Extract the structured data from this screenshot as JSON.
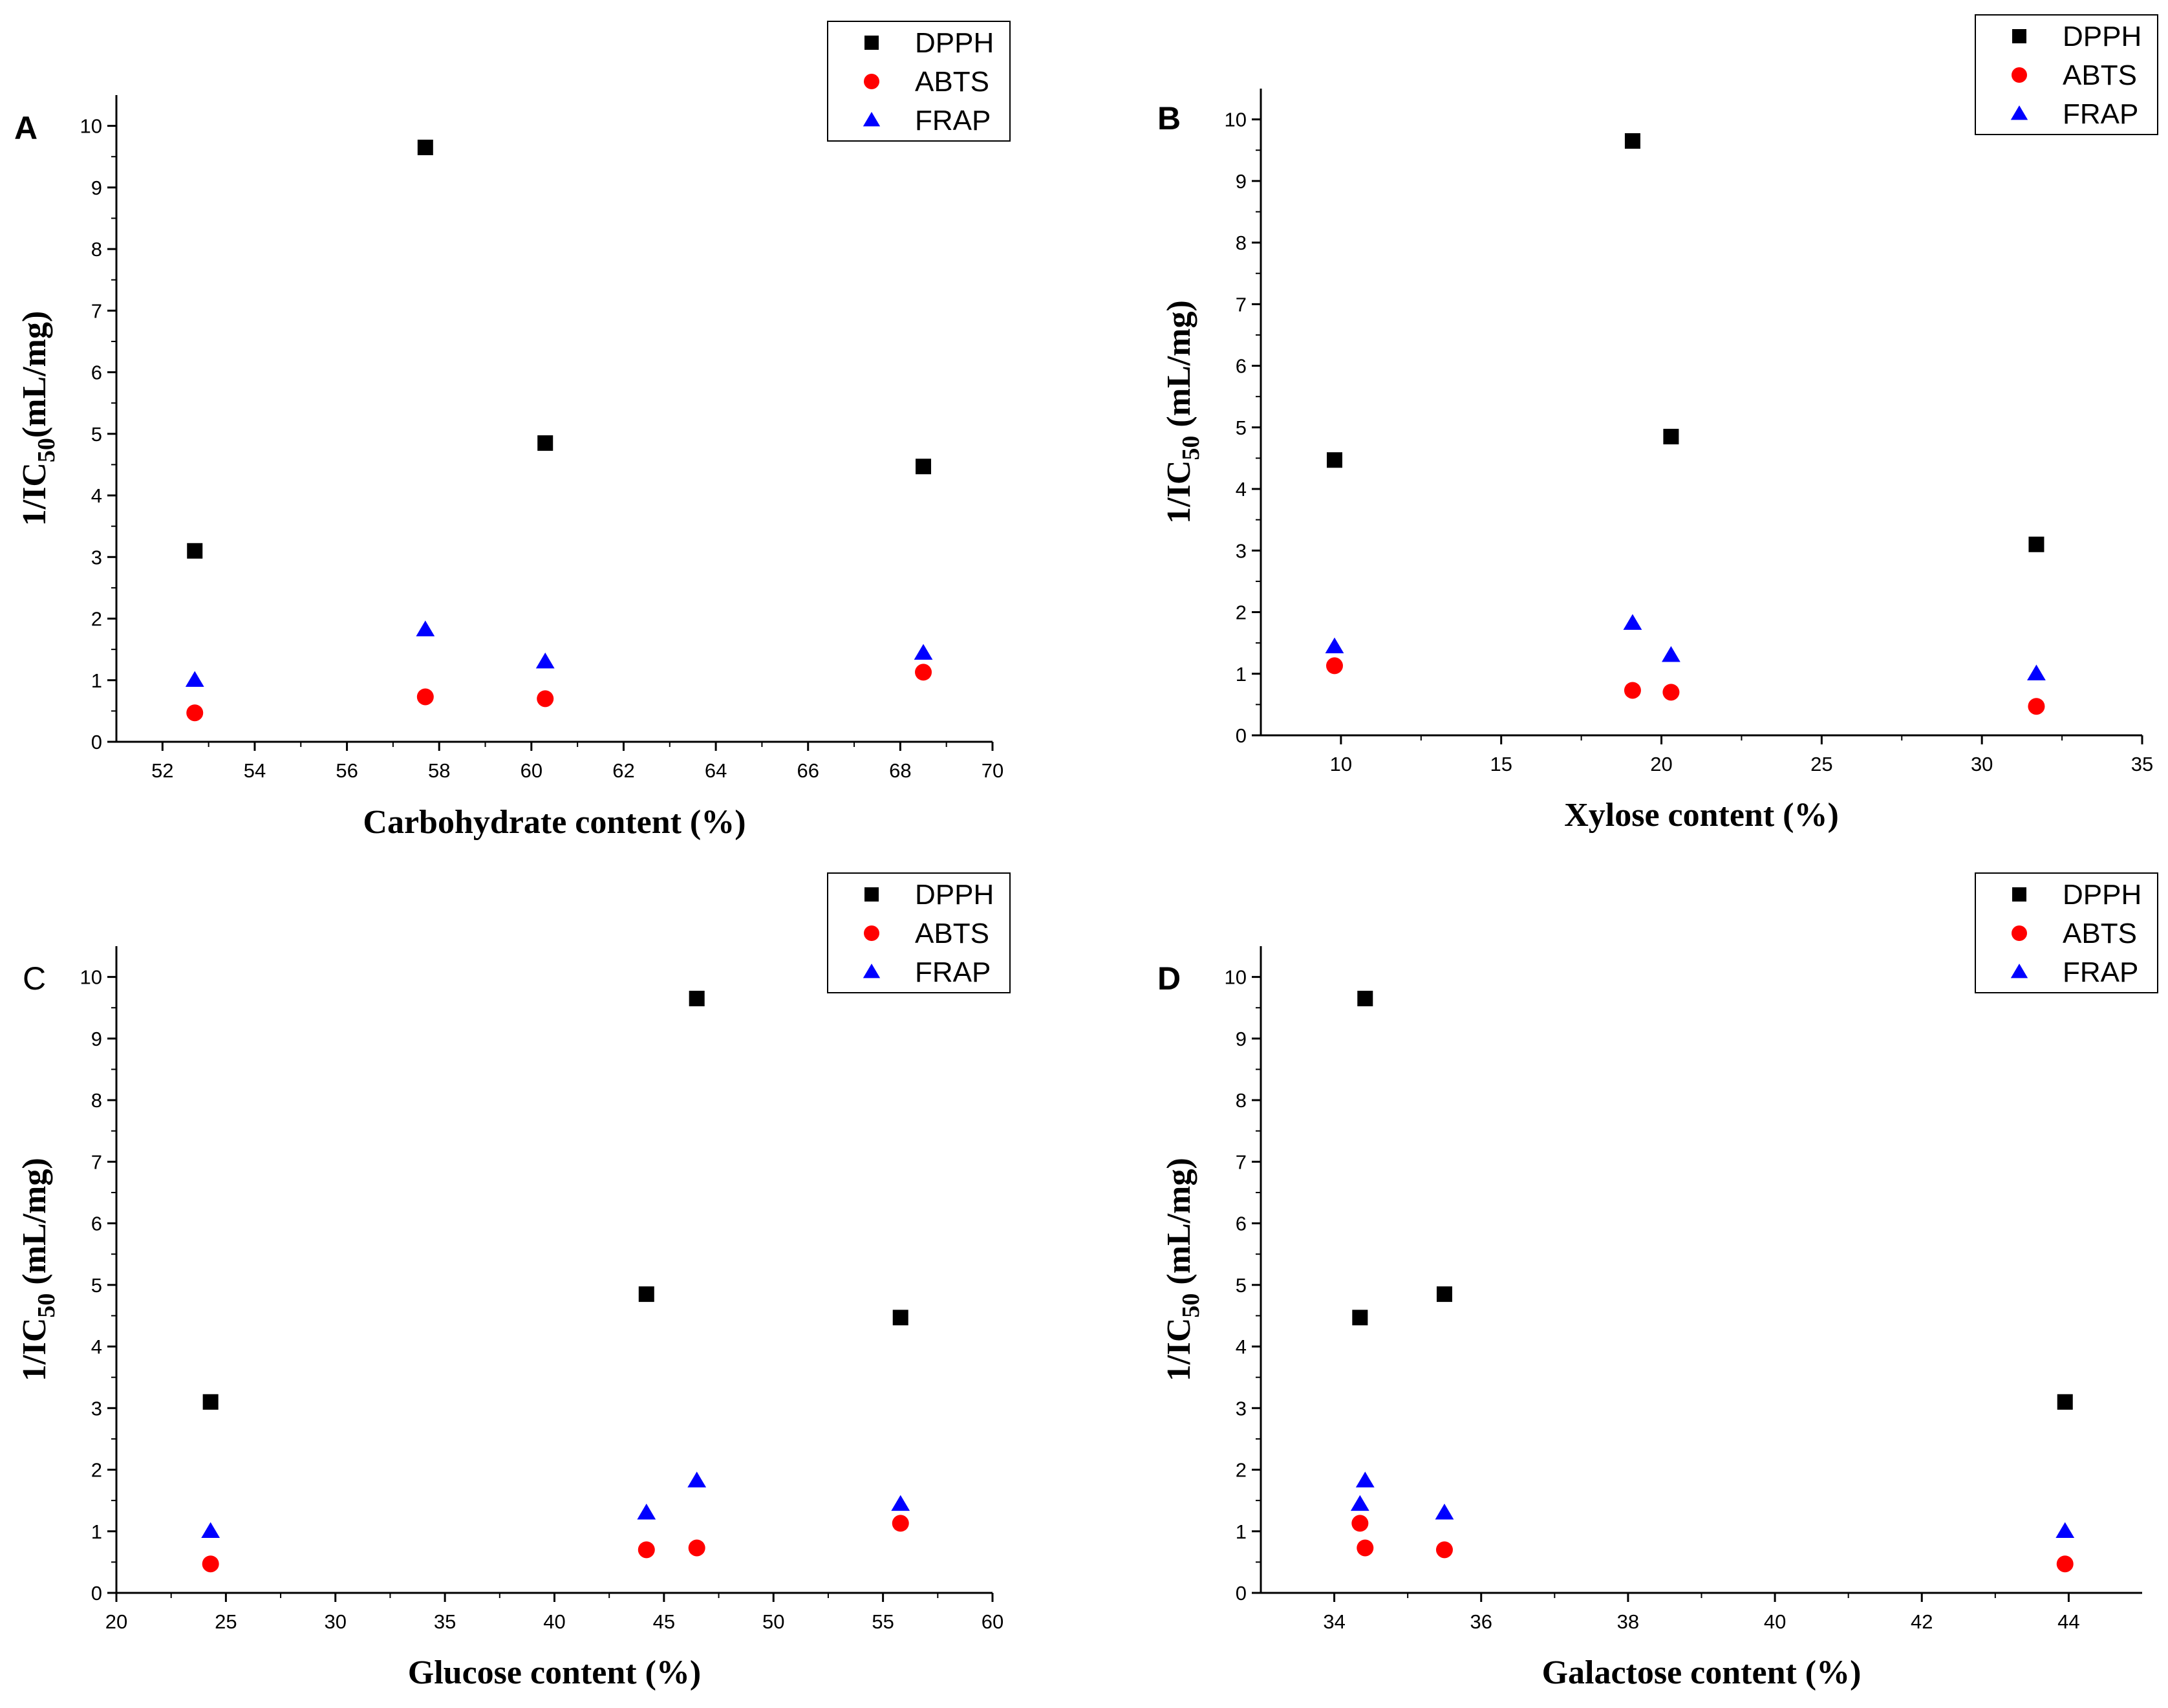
{
  "chart_data": [
    {
      "type": "scatter",
      "panel_label": "A",
      "panel_label_bold": true,
      "xlabel": "Carbohydrate content (%)",
      "ylabel_prefix": "1/IC",
      "ylabel_sub": "50",
      "ylabel_suffix": "(mL/mg)",
      "xlim": [
        51,
        70
      ],
      "xticks": [
        52,
        54,
        56,
        58,
        60,
        62,
        64,
        66,
        68,
        70
      ],
      "ylim": [
        0,
        10.5
      ],
      "yticks": [
        0,
        1,
        2,
        3,
        4,
        5,
        6,
        7,
        8,
        9,
        10
      ],
      "legend_position": "top-right",
      "series": [
        {
          "name": "DPPH",
          "marker": "square",
          "color": "#000000",
          "x": [
            52.7,
            57.7,
            60.3,
            68.5
          ],
          "y": [
            3.1,
            9.65,
            4.85,
            4.47
          ]
        },
        {
          "name": "ABTS",
          "marker": "circle",
          "color": "#ff0000",
          "x": [
            52.7,
            57.7,
            60.3,
            68.5
          ],
          "y": [
            0.47,
            0.73,
            0.7,
            1.13
          ]
        },
        {
          "name": "FRAP",
          "marker": "triangle",
          "color": "#0000ff",
          "x": [
            52.7,
            57.7,
            60.3,
            68.5
          ],
          "y": [
            1.0,
            1.82,
            1.3,
            1.44
          ]
        }
      ]
    },
    {
      "type": "scatter",
      "panel_label": "B",
      "panel_label_bold": true,
      "xlabel": "Xylose content (%)",
      "ylabel_prefix": "1/IC",
      "ylabel_sub": "50",
      "ylabel_suffix": " (mL/mg)",
      "xlim": [
        7.5,
        35
      ],
      "xticks": [
        10,
        15,
        20,
        25,
        30,
        35
      ],
      "ylim": [
        0,
        10.5
      ],
      "yticks": [
        0,
        1,
        2,
        3,
        4,
        5,
        6,
        7,
        8,
        9,
        10
      ],
      "legend_position": "top-right",
      "series": [
        {
          "name": "DPPH",
          "marker": "square",
          "color": "#000000",
          "x": [
            9.8,
            19.1,
            20.3,
            31.7
          ],
          "y": [
            4.47,
            9.65,
            4.85,
            3.1
          ]
        },
        {
          "name": "ABTS",
          "marker": "circle",
          "color": "#ff0000",
          "x": [
            9.8,
            19.1,
            20.3,
            31.7
          ],
          "y": [
            1.13,
            0.73,
            0.7,
            0.47
          ]
        },
        {
          "name": "FRAP",
          "marker": "triangle",
          "color": "#0000ff",
          "x": [
            9.8,
            19.1,
            20.3,
            31.7
          ],
          "y": [
            1.44,
            1.82,
            1.3,
            1.0
          ]
        }
      ]
    },
    {
      "type": "scatter",
      "panel_label": "C",
      "panel_label_bold": false,
      "xlabel": "Glucose content (%)",
      "ylabel_prefix": "1/IC",
      "ylabel_sub": "50",
      "ylabel_suffix": " (mL/mg)",
      "xlim": [
        20,
        60
      ],
      "xticks": [
        20,
        25,
        30,
        35,
        40,
        45,
        50,
        55,
        60
      ],
      "ylim": [
        0,
        10.5
      ],
      "yticks": [
        0,
        1,
        2,
        3,
        4,
        5,
        6,
        7,
        8,
        9,
        10
      ],
      "legend_position": "top-right",
      "series": [
        {
          "name": "DPPH",
          "marker": "square",
          "color": "#000000",
          "x": [
            24.3,
            44.2,
            46.5,
            55.8
          ],
          "y": [
            3.1,
            4.85,
            9.65,
            4.47
          ]
        },
        {
          "name": "ABTS",
          "marker": "circle",
          "color": "#ff0000",
          "x": [
            24.3,
            44.2,
            46.5,
            55.8
          ],
          "y": [
            0.47,
            0.7,
            0.73,
            1.13
          ]
        },
        {
          "name": "FRAP",
          "marker": "triangle",
          "color": "#0000ff",
          "x": [
            24.3,
            44.2,
            46.5,
            55.8
          ],
          "y": [
            1.0,
            1.3,
            1.82,
            1.44
          ]
        }
      ]
    },
    {
      "type": "scatter",
      "panel_label": "D",
      "panel_label_bold": true,
      "xlabel": "Galactose content (%)",
      "ylabel_prefix": "1/IC",
      "ylabel_sub": "50",
      "ylabel_suffix": " (mL/mg)",
      "xlim": [
        33,
        45
      ],
      "xticks": [
        34,
        36,
        38,
        40,
        42,
        44
      ],
      "ylim": [
        0,
        10.5
      ],
      "yticks": [
        0,
        1,
        2,
        3,
        4,
        5,
        6,
        7,
        8,
        9,
        10
      ],
      "legend_position": "top-right",
      "series": [
        {
          "name": "DPPH",
          "marker": "square",
          "color": "#000000",
          "x": [
            34.35,
            34.42,
            35.5,
            43.95
          ],
          "y": [
            4.47,
            9.65,
            4.85,
            3.1
          ]
        },
        {
          "name": "ABTS",
          "marker": "circle",
          "color": "#ff0000",
          "x": [
            34.35,
            34.42,
            35.5,
            43.95
          ],
          "y": [
            1.13,
            0.73,
            0.7,
            0.47
          ]
        },
        {
          "name": "FRAP",
          "marker": "triangle",
          "color": "#0000ff",
          "x": [
            34.35,
            34.42,
            35.5,
            43.95
          ],
          "y": [
            1.44,
            1.82,
            1.3,
            1.0
          ]
        }
      ]
    }
  ]
}
